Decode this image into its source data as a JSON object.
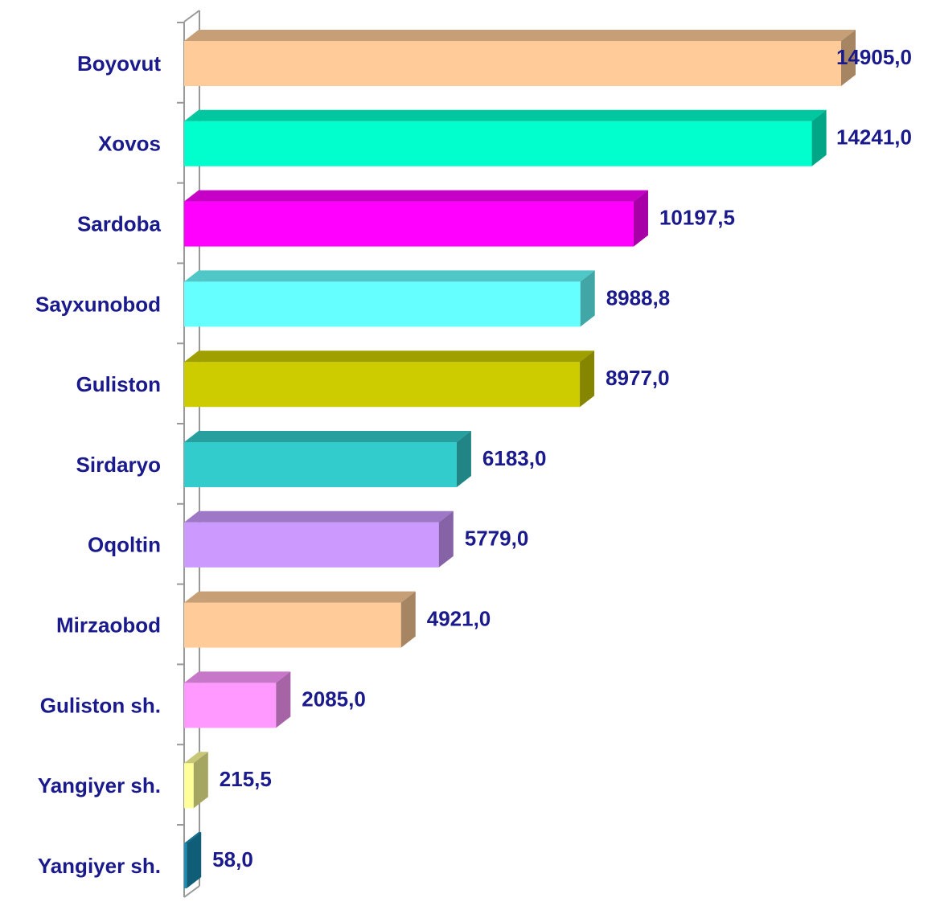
{
  "chart_data": {
    "type": "bar3d_horizontal",
    "categories": [
      "Boyovut",
      "Xovos",
      "Sardoba",
      "Sayxunobod",
      "Guliston",
      "Sirdaryo",
      "Oqoltin",
      "Mirzaobod",
      "Guliston sh.",
      "Yangiyer sh.",
      "Yangiyer sh."
    ],
    "values": [
      14905.0,
      14241.0,
      10197.5,
      8988.8,
      8977.0,
      6183.0,
      5779.0,
      4921.0,
      2085.0,
      215.5,
      58.0
    ],
    "value_labels": [
      "14905,0",
      "14241,0",
      "10197,5",
      "8988,8",
      "8977,0",
      "6183,0",
      "5779,0",
      "4921,0",
      "2085,0",
      "215,5",
      "58,0"
    ],
    "colors": [
      "#FFCC99",
      "#00FFCC",
      "#FF00FF",
      "#66FFFF",
      "#CCCC00",
      "#33CCCC",
      "#CC99FF",
      "#FFCC99",
      "#FF99FF",
      "#FFFF99",
      "#1A8FB8"
    ]
  }
}
